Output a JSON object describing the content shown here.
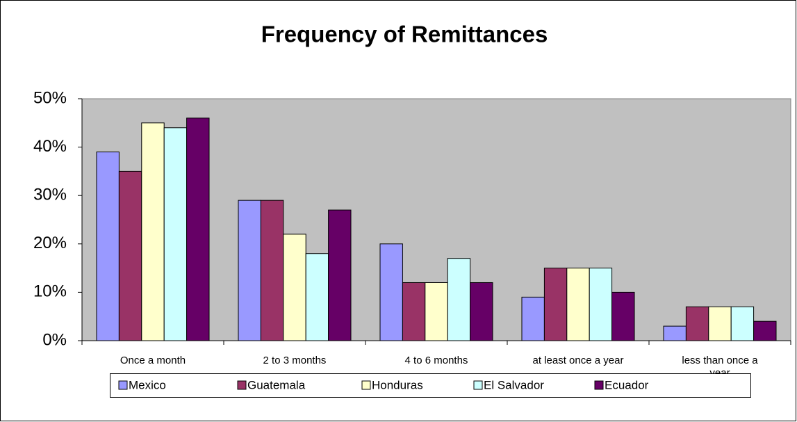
{
  "chart_data": {
    "type": "bar",
    "title": "Frequency of Remittances",
    "categories": [
      "Once a month",
      "2 to 3 months",
      "4 to 6 months",
      "at least once a year",
      "less than once a year"
    ],
    "series": [
      {
        "name": "Mexico",
        "color": "#9999ff",
        "values": [
          39,
          29,
          20,
          9,
          3
        ]
      },
      {
        "name": "Guatemala",
        "color": "#993366",
        "values": [
          35,
          29,
          12,
          15,
          7
        ]
      },
      {
        "name": "Honduras",
        "color": "#ffffcc",
        "values": [
          45,
          22,
          12,
          15,
          7
        ]
      },
      {
        "name": "El Salvador",
        "color": "#ccffff",
        "values": [
          44,
          18,
          17,
          15,
          7
        ]
      },
      {
        "name": "Ecuador",
        "color": "#660066",
        "values": [
          46,
          27,
          12,
          10,
          4
        ]
      }
    ],
    "ylim": [
      0,
      50
    ],
    "yticks": [
      {
        "value": 0,
        "label": "0%"
      },
      {
        "value": 10,
        "label": "10%"
      },
      {
        "value": 20,
        "label": "20%"
      },
      {
        "value": 30,
        "label": "30%"
      },
      {
        "value": 40,
        "label": "40%"
      },
      {
        "value": 50,
        "label": "50%"
      }
    ],
    "grid": false,
    "legend": "bottom",
    "plot_background": "#c0c0c0"
  }
}
